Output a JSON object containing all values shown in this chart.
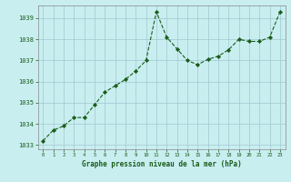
{
  "x": [
    0,
    1,
    2,
    3,
    4,
    5,
    6,
    7,
    8,
    9,
    10,
    11,
    12,
    13,
    14,
    15,
    16,
    17,
    18,
    19,
    20,
    21,
    22,
    23
  ],
  "y": [
    1033.2,
    1033.7,
    1033.9,
    1034.3,
    1034.3,
    1034.9,
    1035.5,
    1035.8,
    1036.1,
    1036.5,
    1037.0,
    1039.3,
    1038.1,
    1037.55,
    1037.0,
    1036.8,
    1037.05,
    1037.2,
    1037.5,
    1038.0,
    1037.9,
    1037.9,
    1038.1,
    1039.3
  ],
  "line_color": "#1a5c1a",
  "marker_color": "#1a5c1a",
  "bg_color": "#c8eef0",
  "grid_color": "#a0c8d0",
  "xlabel": "Graphe pression niveau de la mer (hPa)",
  "xlabel_color": "#1a5c1a",
  "tick_color": "#1a5c1a",
  "ylim_min": 1032.8,
  "ylim_max": 1039.6,
  "yticks": [
    1033,
    1034,
    1035,
    1036,
    1037,
    1038,
    1039
  ],
  "xticks": [
    0,
    1,
    2,
    3,
    4,
    5,
    6,
    7,
    8,
    9,
    10,
    11,
    12,
    13,
    14,
    15,
    16,
    17,
    18,
    19,
    20,
    21,
    22,
    23
  ],
  "spine_color": "#888888"
}
